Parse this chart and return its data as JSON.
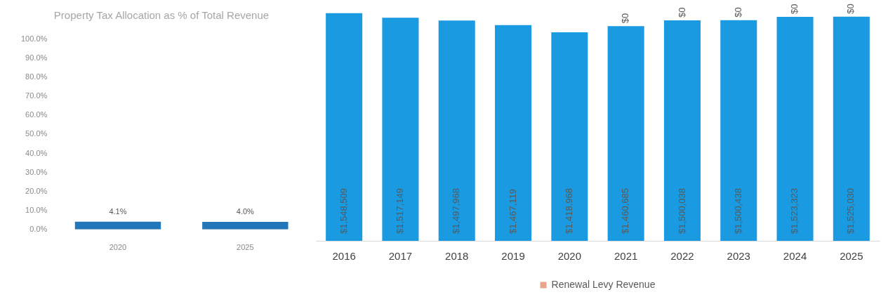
{
  "chart_data": [
    {
      "type": "bar",
      "title": "Property Tax Allocation as % of Total Revenue",
      "categories": [
        "2020",
        "2025"
      ],
      "series": [
        {
          "color": "#2376b7",
          "values": [
            4.1,
            4.0
          ],
          "value_labels": [
            "4.1%",
            "4.0%"
          ]
        }
      ],
      "ylim": [
        0,
        100
      ],
      "yticks": [
        {
          "value": 0,
          "label": "0.0%"
        },
        {
          "value": 10,
          "label": "10.0%"
        },
        {
          "value": 20,
          "label": "20.0%"
        },
        {
          "value": 30,
          "label": "30.0%"
        },
        {
          "value": 40,
          "label": "40.0%"
        },
        {
          "value": 50,
          "label": "50.0%"
        },
        {
          "value": 60,
          "label": "60.0%"
        },
        {
          "value": 70,
          "label": "70.0%"
        },
        {
          "value": 80,
          "label": "80.0%"
        },
        {
          "value": 90,
          "label": "90.0%"
        },
        {
          "value": 100,
          "label": "100.0%"
        }
      ],
      "grid": false,
      "legend": false
    },
    {
      "type": "bar",
      "stacked": true,
      "categories": [
        "2016",
        "2017",
        "2018",
        "2019",
        "2020",
        "2021",
        "2022",
        "2023",
        "2024",
        "2025"
      ],
      "series": [
        {
          "color": "#1a9ae0",
          "values": [
            1548509,
            1517149,
            1497968,
            1467119,
            1418968,
            1460685,
            1500038,
            1500438,
            1523323,
            1525030
          ],
          "value_labels": [
            "$1,548,509",
            "$1,517,149",
            "$1,497,968",
            "$1,467,119",
            "$1,418,968",
            "$1,460,685",
            "$1,500,038",
            "$1,500,438",
            "$1,523,323",
            "$1,525,030"
          ]
        },
        {
          "name": "Renewal Levy Revenue",
          "color": "#e8a58a",
          "values": [
            null,
            null,
            null,
            null,
            null,
            0,
            0,
            0,
            0,
            0
          ],
          "value_labels": [
            null,
            null,
            null,
            null,
            null,
            "$0",
            "$0",
            "$0",
            "$0",
            "$0"
          ]
        }
      ],
      "grid": false,
      "legend": "bottom"
    }
  ]
}
